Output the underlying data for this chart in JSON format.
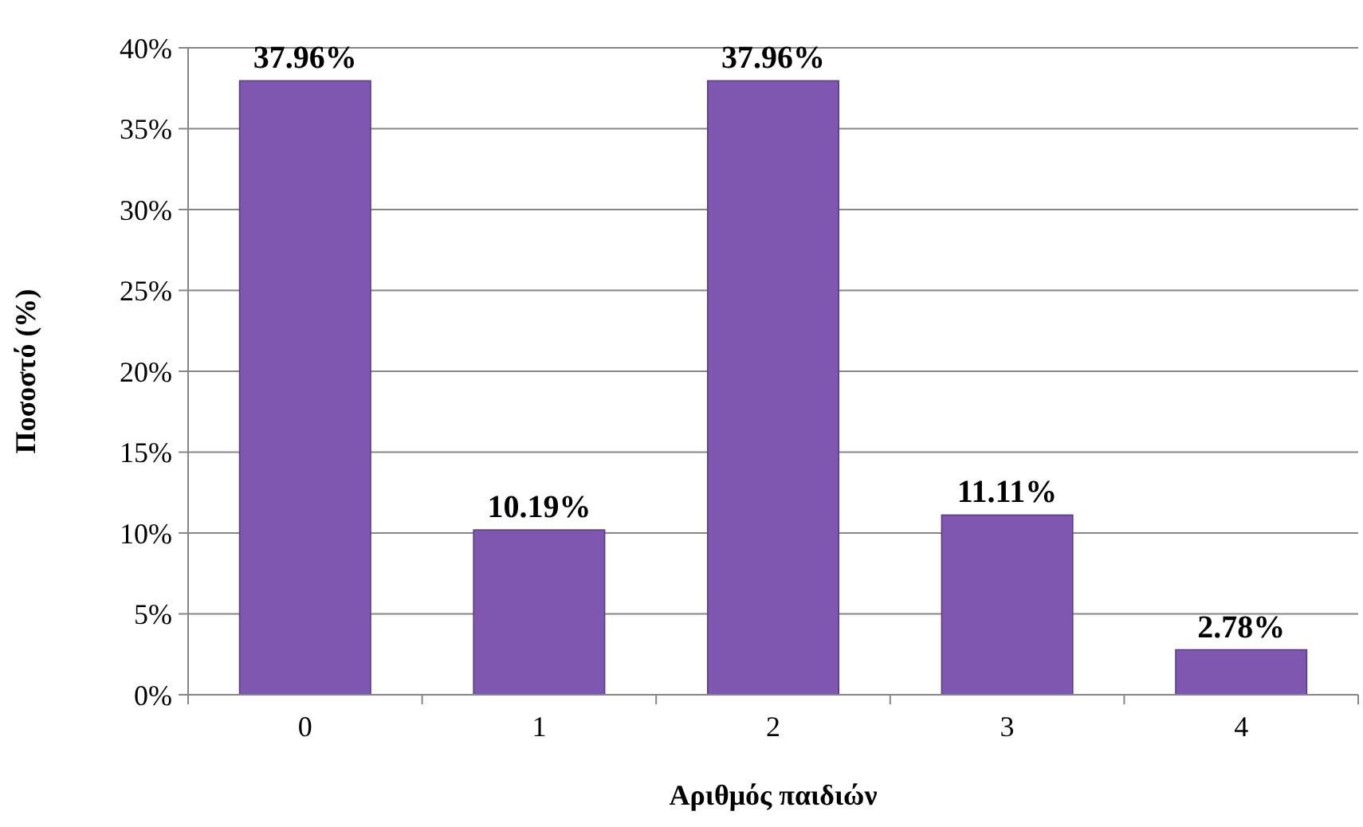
{
  "chart_data": {
    "type": "bar",
    "xlabel": "Αριθμός παιδιών",
    "ylabel": "Ποσοστό (%)",
    "categories": [
      "0",
      "1",
      "2",
      "3",
      "4"
    ],
    "values": [
      37.96,
      10.19,
      37.96,
      11.11,
      2.78
    ],
    "value_labels": [
      "37.96%",
      "10.19%",
      "37.96%",
      "11.11%",
      "2.78%"
    ],
    "color": "#7e57b0",
    "ylim": [
      0,
      40
    ],
    "yticks": [
      {
        "value": 0,
        "label": "0%"
      },
      {
        "value": 5,
        "label": "5%"
      },
      {
        "value": 10,
        "label": "10%"
      },
      {
        "value": 15,
        "label": "15%"
      },
      {
        "value": 20,
        "label": "20%"
      },
      {
        "value": 25,
        "label": "25%"
      },
      {
        "value": 30,
        "label": "30%"
      },
      {
        "value": 35,
        "label": "35%"
      },
      {
        "value": 40,
        "label": "40%"
      }
    ],
    "grid": "y"
  }
}
